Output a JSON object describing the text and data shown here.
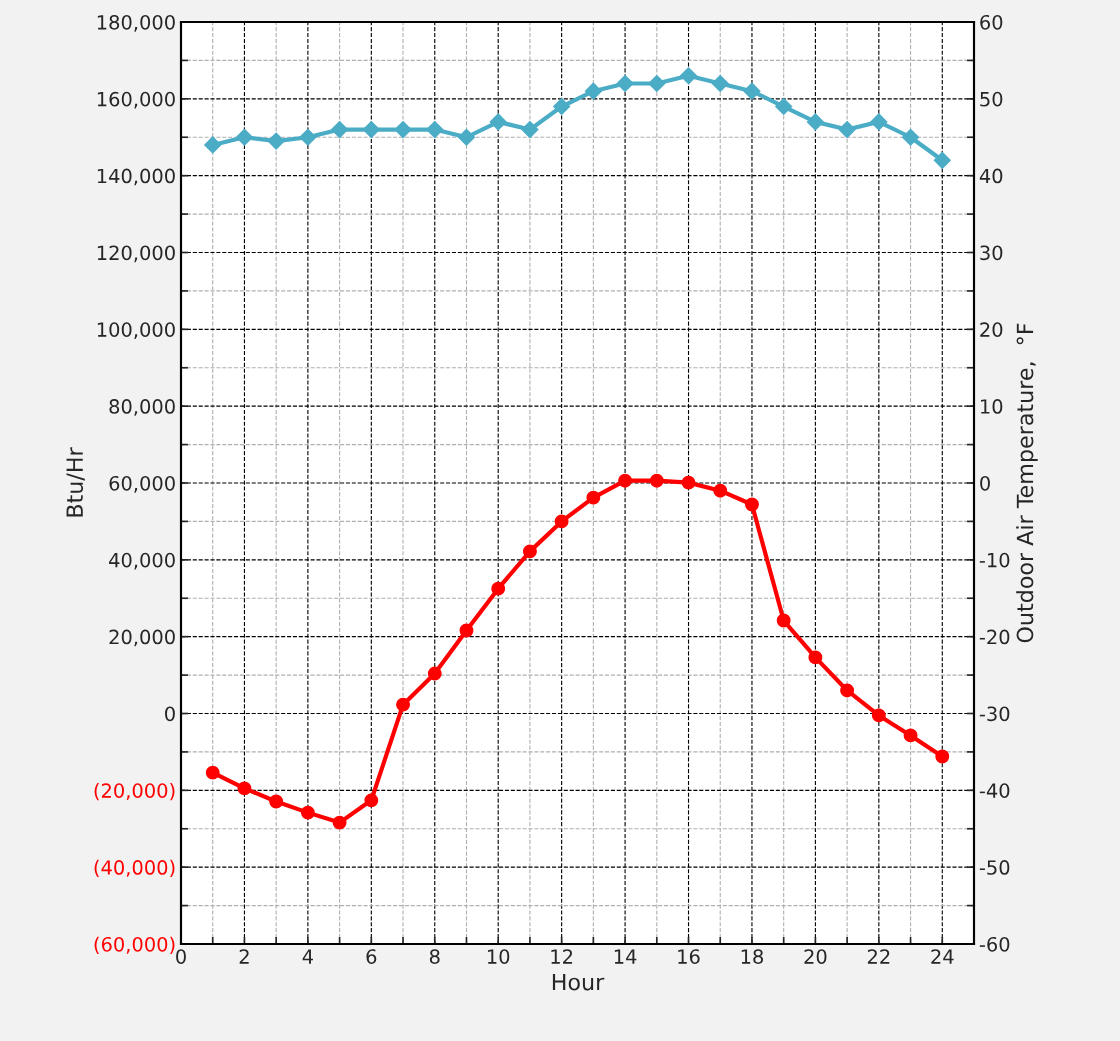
{
  "chart_data": {
    "type": "line",
    "xlabel": "Hour",
    "ylabel": "Btu/Hr",
    "y2label": "Outdoor Air Temperature,  °F",
    "x": [
      1,
      2,
      3,
      4,
      5,
      6,
      7,
      8,
      9,
      10,
      11,
      12,
      13,
      14,
      15,
      16,
      17,
      18,
      19,
      20,
      21,
      22,
      23,
      24
    ],
    "series": [
      {
        "color": "#ff0000",
        "marker": "circle",
        "values": [
          -15400,
          -19500,
          -22900,
          -25800,
          -28400,
          -22600,
          2300,
          10400,
          21600,
          32500,
          42200,
          50000,
          56200,
          60600,
          60600,
          60100,
          58000,
          54400,
          24200,
          14600,
          6000,
          -500,
          -5700,
          -11200
        ]
      },
      {
        "color": "#4bacc6",
        "marker": "diamond",
        "axis": "y2",
        "values": [
          44,
          45,
          44.5,
          45,
          46,
          46,
          46,
          46,
          45,
          47,
          46,
          49,
          51,
          52,
          52,
          53,
          52,
          51,
          49,
          47,
          46,
          47,
          45,
          42
        ]
      }
    ],
    "xlim": [
      0,
      25
    ],
    "xticks": [
      0,
      2,
      4,
      6,
      8,
      10,
      12,
      14,
      16,
      18,
      20,
      22,
      24
    ],
    "ylim": [
      -60000,
      180000
    ],
    "yticks": [
      {
        "value": -60000,
        "label": "(60,000)"
      },
      {
        "value": -40000,
        "label": "(40,000)"
      },
      {
        "value": -20000,
        "label": "(20,000)"
      },
      0,
      {
        "value": 20000,
        "label": "20,000"
      },
      {
        "value": 40000,
        "label": "40,000"
      },
      {
        "value": 60000,
        "label": "60,000"
      },
      {
        "value": 80000,
        "label": "80,000"
      },
      {
        "value": 100000,
        "label": "100,000"
      },
      {
        "value": 120000,
        "label": "120,000"
      },
      {
        "value": 140000,
        "label": "140,000"
      },
      {
        "value": 160000,
        "label": "160,000"
      },
      {
        "value": 180000,
        "label": "180,000"
      }
    ],
    "y2lim": [
      -60,
      60
    ],
    "y2ticks": [
      -60,
      -50,
      -40,
      -30,
      -20,
      -10,
      0,
      10,
      20,
      30,
      40,
      50,
      60
    ],
    "grid": true,
    "line_style": "solid"
  }
}
